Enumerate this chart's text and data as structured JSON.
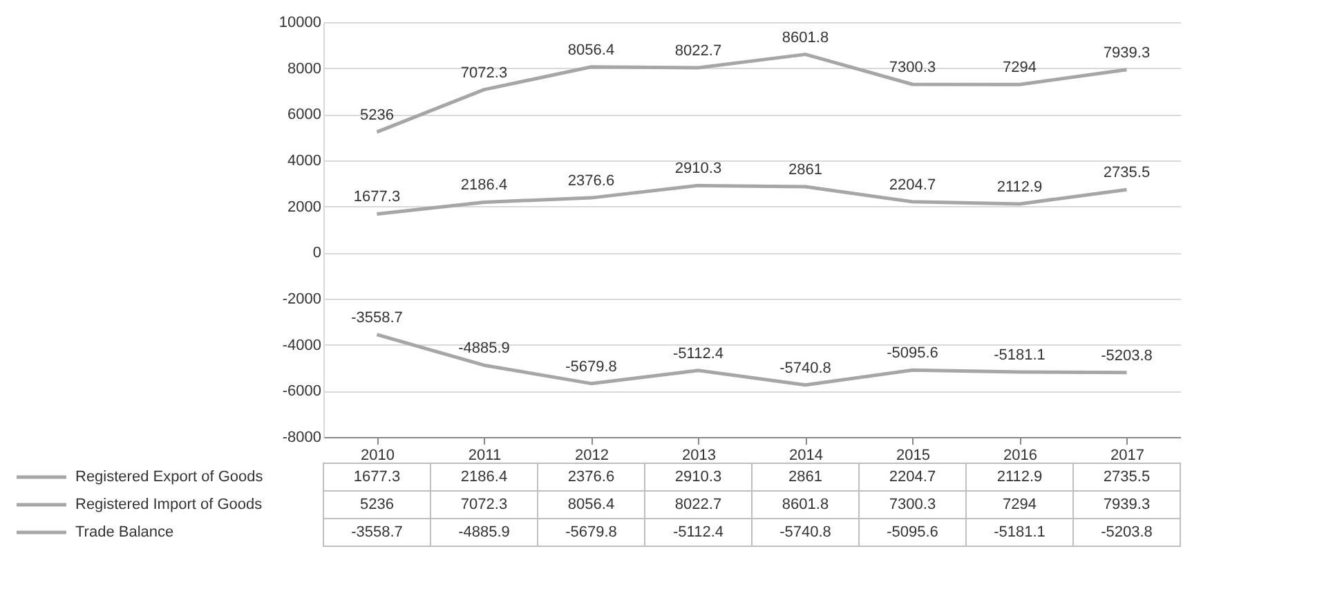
{
  "chart_data": {
    "type": "line",
    "categories": [
      "2010",
      "2011",
      "2012",
      "2013",
      "2014",
      "2015",
      "2016",
      "2017"
    ],
    "series": [
      {
        "name": "Registered Export of Goods",
        "color": "#a6a6a6",
        "values": [
          1677.3,
          2186.4,
          2376.6,
          2910.3,
          2861,
          2204.7,
          2112.9,
          2735.5
        ],
        "value_labels": [
          "1677.3",
          "2186.4",
          "2376.6",
          "2910.3",
          "2861",
          "2204.7",
          "2112.9",
          "2735.5"
        ]
      },
      {
        "name": "Registered Import of Goods",
        "color": "#a6a6a6",
        "values": [
          5236,
          7072.3,
          8056.4,
          8022.7,
          8601.8,
          7300.3,
          7294,
          7939.3
        ],
        "value_labels": [
          "5236",
          "7072.3",
          "8056.4",
          "8022.7",
          "8601.8",
          "7300.3",
          "7294",
          "7939.3"
        ]
      },
      {
        "name": "Trade Balance",
        "color": "#a6a6a6",
        "values": [
          -3558.7,
          -4885.9,
          -5679.8,
          -5112.4,
          -5740.8,
          -5095.6,
          -5181.1,
          -5203.8
        ],
        "value_labels": [
          "-3558.7",
          "-4885.9",
          "-5679.8",
          "-5112.4",
          "-5740.8",
          "-5095.6",
          "-5181.1",
          "-5203.8"
        ]
      }
    ],
    "ylim": [
      -8000,
      10000
    ],
    "yticks": [
      -8000,
      -6000,
      -4000,
      -2000,
      0,
      2000,
      4000,
      6000,
      8000,
      10000
    ],
    "annotations": [
      "1677.3",
      "2186.4",
      "2376.6",
      "2910.3",
      "2861",
      "2204.7",
      "2112.9",
      "2735.5",
      "5236",
      "7072.3",
      "8056.4",
      "8022.7",
      "8601.8",
      "7300.3",
      "7294",
      "7939.3",
      "-3558.7",
      "-4885.9",
      "-5679.8",
      "-5112.4",
      "-5740.8",
      "-5095.6",
      "-5181.1",
      "-5203.8"
    ],
    "grid": "y",
    "legend": "bottom"
  }
}
